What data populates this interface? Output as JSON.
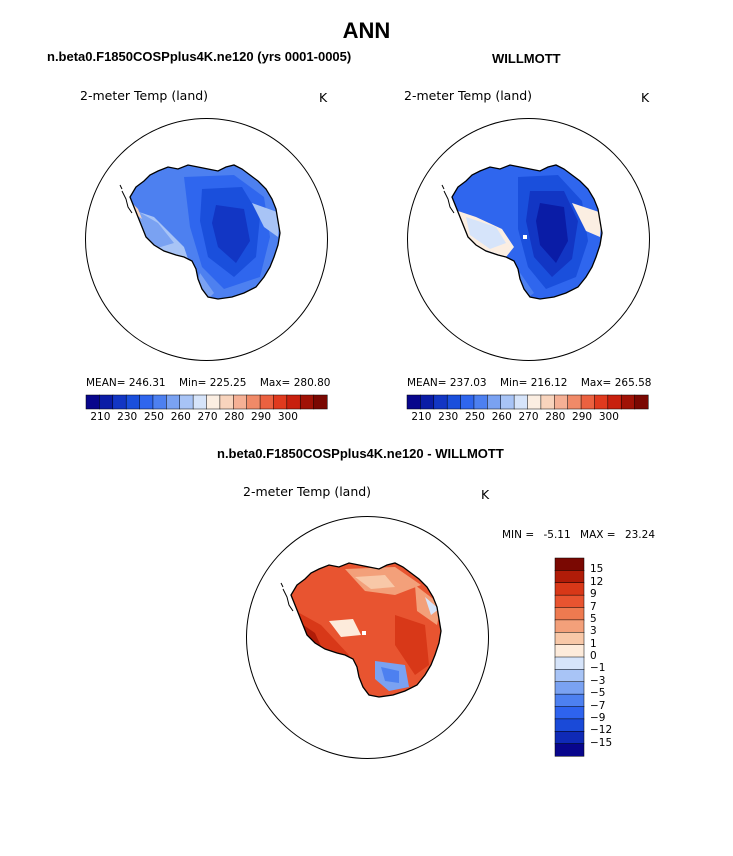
{
  "figure": {
    "title": "ANN",
    "left_panel_title": "n.beta0.F1850COSPplus4K.ne120 (yrs 0001-0005)",
    "right_panel_title": "WILLMOTT",
    "diff_panel_title": "n.beta0.F1850COSPplus4K.ne120 - WILLMOTT",
    "variable_label": "2-meter Temp (land)",
    "units_label": "K"
  },
  "colors": {
    "abs_scale": [
      "#08068c",
      "#0a1ca6",
      "#1236c4",
      "#1a4fdc",
      "#2f66ee",
      "#4d80f0",
      "#7aa2f2",
      "#a8c4f6",
      "#d6e4fa",
      "#fbeee2",
      "#f8d4bd",
      "#f5b095",
      "#f08a68",
      "#eb6140",
      "#e03a1e",
      "#c8200e",
      "#a01206",
      "#7a0802"
    ],
    "diff_scale": [
      "#08068c",
      "#0f2ab6",
      "#1a4ad8",
      "#2e63ee",
      "#4d80f0",
      "#7aa2f2",
      "#a8c4f6",
      "#d6e4fa",
      "#fdebdb",
      "#f8c8a8",
      "#f3a07a",
      "#ee7a50",
      "#e85430",
      "#d83818",
      "#b01c08",
      "#7a0802"
    ]
  },
  "chart_data": [
    {
      "type": "heatmap",
      "title": "n.beta0.F1850COSPplus4K.ne120 (yrs 0001-0005)",
      "field": "2-meter Temp (land)",
      "units": "K",
      "projection": "south polar stereographic",
      "mean_label": "MEAN=",
      "mean": "246.31",
      "min_label": "Min=",
      "min": "225.25",
      "max_label": "Max=",
      "max": "280.80",
      "colorbar_ticks": [
        "210",
        "230",
        "250",
        "260",
        "270",
        "280",
        "290",
        "300"
      ]
    },
    {
      "type": "heatmap",
      "title": "WILLMOTT",
      "field": "2-meter Temp (land)",
      "units": "K",
      "projection": "south polar stereographic",
      "mean_label": "MEAN=",
      "mean": "237.03",
      "min_label": "Min=",
      "min": "216.12",
      "max_label": "Max=",
      "max": "265.58",
      "colorbar_ticks": [
        "210",
        "230",
        "250",
        "260",
        "270",
        "280",
        "290",
        "300"
      ]
    },
    {
      "type": "heatmap",
      "title": "n.beta0.F1850COSPplus4K.ne120 - WILLMOTT",
      "field": "2-meter Temp (land)",
      "units": "K",
      "projection": "south polar stereographic",
      "min_label": "MIN =",
      "min": "-5.11",
      "max_label": "MAX =",
      "max": "23.24",
      "colorbar_ticks": [
        "15",
        "12",
        "9",
        "7",
        "5",
        "3",
        "1",
        "0",
        "−1",
        "−3",
        "−5",
        "−7",
        "−9",
        "−12",
        "−15"
      ]
    }
  ]
}
